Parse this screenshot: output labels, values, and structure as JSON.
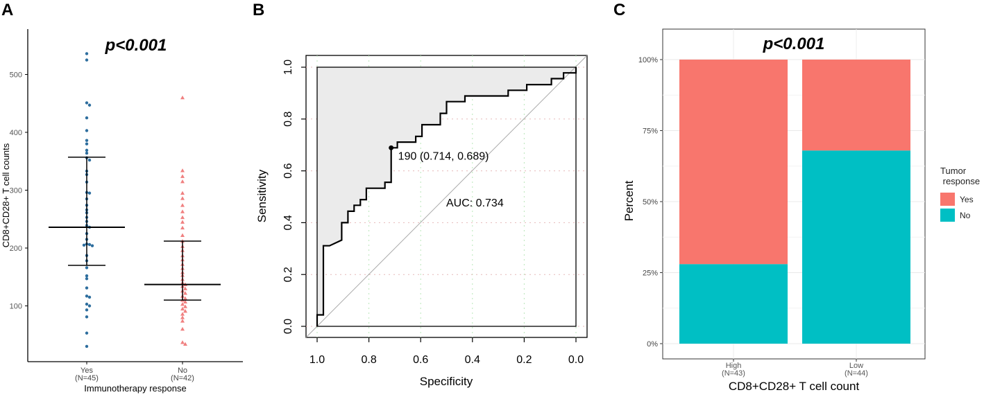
{
  "chart_data": [
    {
      "panel": "A",
      "type": "scatter",
      "annotation": "p<0.001",
      "xlabel": "Immunotherapy response",
      "ylabel": "CD8+CD28+ T cell counts",
      "ylim": [
        0,
        560
      ],
      "yticks": [
        100,
        200,
        300,
        400,
        500
      ],
      "categories": [
        "Yes\n(N=45)",
        "No\n(N=42)"
      ],
      "series": [
        {
          "name": "Yes",
          "color": "#2e6e9e",
          "marker": "circle",
          "median": 236,
          "q1": 170,
          "q3": 357,
          "values": [
            536,
            525,
            451,
            447,
            425,
            403,
            386,
            380,
            369,
            364,
            356,
            352,
            333,
            327,
            314,
            296,
            295,
            285,
            274,
            266,
            261,
            253,
            246,
            239,
            236,
            225,
            215,
            207,
            206,
            205,
            204,
            187,
            178,
            166,
            152,
            147,
            131,
            117,
            115,
            103,
            100,
            93,
            81,
            53,
            30
          ]
        },
        {
          "name": "No",
          "color": "#f08080",
          "marker": "triangle",
          "median": 137,
          "q1": 110,
          "q3": 212,
          "values": [
            460,
            334,
            324,
            315,
            295,
            286,
            274,
            263,
            253,
            245,
            235,
            222,
            212,
            203,
            196,
            187,
            180,
            172,
            165,
            158,
            153,
            146,
            140,
            137,
            134,
            130,
            126,
            122,
            117,
            113,
            110,
            107,
            103,
            99,
            95,
            91,
            86,
            80,
            74,
            60,
            37,
            34
          ]
        }
      ]
    },
    {
      "panel": "B",
      "type": "line",
      "xlabel": "Specificity",
      "ylabel": "Sensitivity",
      "xlim": [
        1.0,
        0.0
      ],
      "ylim": [
        0.0,
        1.0
      ],
      "xticks": [
        "1.0",
        "0.8",
        "0.6",
        "0.4",
        "0.2",
        "0.0"
      ],
      "yticks": [
        "0.0",
        "0.2",
        "0.4",
        "0.6",
        "0.8",
        "1.0"
      ],
      "auc_label": "AUC: 0.734",
      "threshold_label": "190 (0.714, 0.689)",
      "threshold_point": {
        "specificity": 0.714,
        "sensitivity": 0.689
      },
      "roc_curve": {
        "specificity": [
          1.0,
          1.0,
          0.976,
          0.976,
          0.976,
          0.952,
          0.905,
          0.905,
          0.881,
          0.881,
          0.857,
          0.857,
          0.833,
          0.833,
          0.81,
          0.81,
          0.738,
          0.738,
          0.714,
          0.714,
          0.69,
          0.69,
          0.619,
          0.619,
          0.595,
          0.595,
          0.524,
          0.524,
          0.5,
          0.5,
          0.429,
          0.429,
          0.381,
          0.381,
          0.262,
          0.262,
          0.19,
          0.19,
          0.095,
          0.095,
          0.048,
          0.048,
          0.0,
          0.0
        ],
        "sensitivity": [
          0.0,
          0.044,
          0.044,
          0.089,
          0.311,
          0.311,
          0.333,
          0.4,
          0.4,
          0.444,
          0.444,
          0.467,
          0.467,
          0.489,
          0.489,
          0.533,
          0.533,
          0.556,
          0.556,
          0.689,
          0.689,
          0.711,
          0.711,
          0.733,
          0.733,
          0.778,
          0.778,
          0.822,
          0.822,
          0.867,
          0.867,
          0.889,
          0.889,
          0.889,
          0.889,
          0.911,
          0.911,
          0.933,
          0.933,
          0.956,
          0.956,
          0.978,
          0.978,
          1.0
        ]
      }
    },
    {
      "panel": "C",
      "type": "bar",
      "annotation": "p<0.001",
      "xlabel": "CD8+CD28+ T cell count",
      "ylabel": "Percent",
      "yticks": [
        "0%",
        "25%",
        "50%",
        "75%",
        "100%"
      ],
      "categories": [
        "High\n(N=43)",
        "Low\n(N=44)"
      ],
      "legend_title": "Tumor\n response",
      "legend_position": "right",
      "series": [
        {
          "name": "Yes",
          "color": "#f8766d",
          "values": [
            0.72,
            0.32
          ]
        },
        {
          "name": "No",
          "color": "#00bfc4",
          "values": [
            0.28,
            0.68
          ]
        }
      ]
    }
  ],
  "panel_labels": [
    "A",
    "B",
    "C"
  ]
}
